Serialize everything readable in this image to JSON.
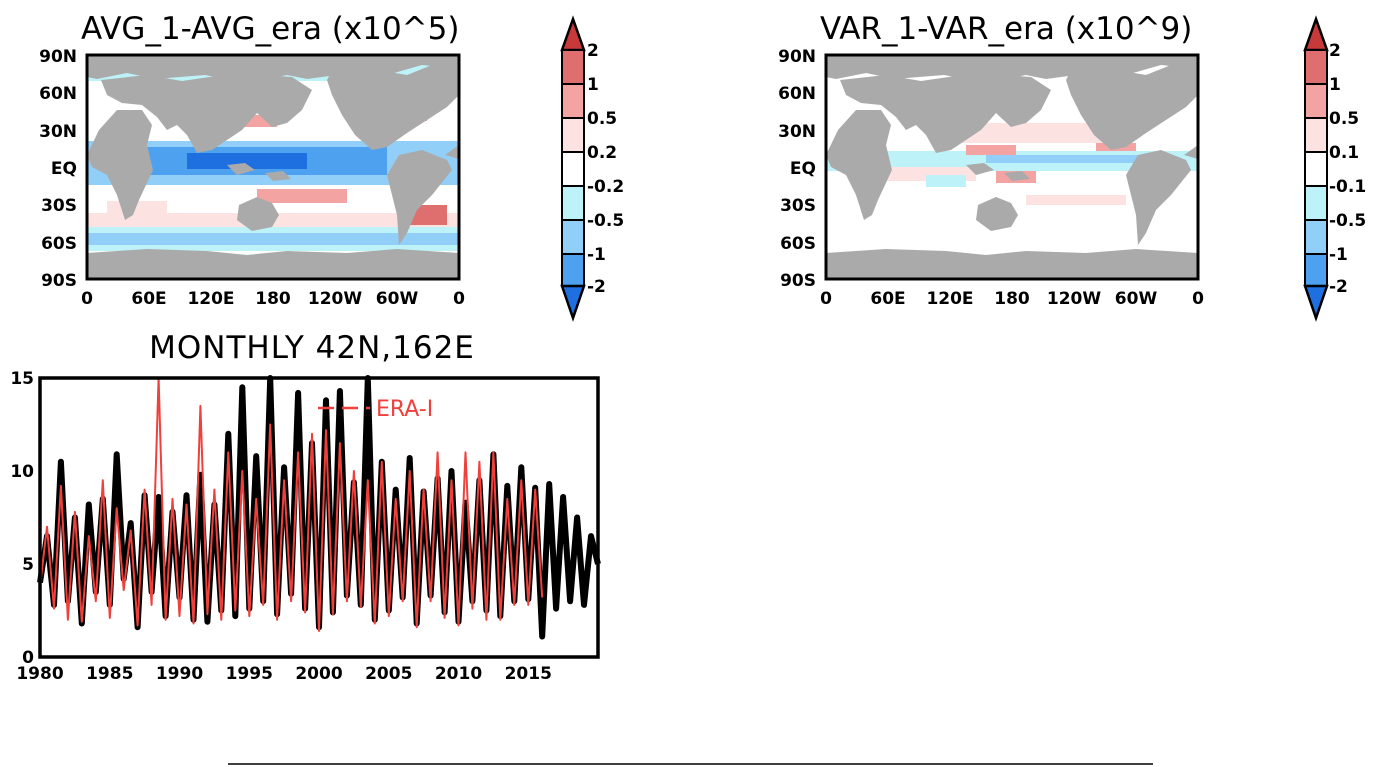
{
  "chart_data": [
    {
      "type": "heatmap",
      "title": "AVG_1-AVG_era (x10^5)",
      "lat_ticks": [
        "90N",
        "60N",
        "30N",
        "EQ",
        "30S",
        "60S",
        "90S"
      ],
      "lon_ticks": [
        "0",
        "60E",
        "120E",
        "180",
        "120W",
        "60W",
        "0"
      ],
      "colorbar": {
        "labels": [
          "2",
          "1",
          "0.5",
          "0.2",
          "-0.2",
          "-0.5",
          "-1",
          "-2"
        ],
        "levels": [
          2,
          1,
          0.5,
          0.2,
          -0.2,
          -0.5,
          -1,
          -2
        ],
        "colors": [
          "#c83a3a",
          "#df6f6f",
          "#f4a3a3",
          "#fde2e2",
          "#ffffff",
          "#bdf3f8",
          "#92cff8",
          "#4ea1ef",
          "#1e6fe0"
        ]
      },
      "land_color": "#aaaaaa"
    },
    {
      "type": "heatmap",
      "title": "VAR_1-VAR_era (x10^9)",
      "lat_ticks": [
        "90N",
        "60N",
        "30N",
        "EQ",
        "30S",
        "60S",
        "90S"
      ],
      "lon_ticks": [
        "0",
        "60E",
        "120E",
        "180",
        "120W",
        "60W",
        "0"
      ],
      "colorbar": {
        "labels": [
          "2",
          "1",
          "0.5",
          "0.1",
          "-0.1",
          "-0.5",
          "-1",
          "-2"
        ],
        "levels": [
          2,
          1,
          0.5,
          0.1,
          -0.1,
          -0.5,
          -1,
          -2
        ],
        "colors": [
          "#c83a3a",
          "#df6f6f",
          "#f4a3a3",
          "#fde2e2",
          "#ffffff",
          "#bdf3f8",
          "#92cff8",
          "#4ea1ef",
          "#1e6fe0"
        ]
      },
      "land_color": "#aaaaaa"
    },
    {
      "type": "line",
      "title": "MONTHLY 42N,162E",
      "xlim": [
        1980,
        2020
      ],
      "ylim": [
        0,
        15
      ],
      "xticks": [
        1980,
        1985,
        1990,
        1995,
        2000,
        2005,
        2010,
        2015
      ],
      "yticks": [
        0,
        5,
        10,
        15
      ],
      "series": [
        {
          "color": "#000000",
          "x": [
            1980.0,
            1980.5,
            1981.0,
            1981.5,
            1982.0,
            1982.5,
            1983.0,
            1983.5,
            1984.0,
            1984.5,
            1985.0,
            1985.5,
            1986.0,
            1986.5,
            1987.0,
            1987.5,
            1988.0,
            1988.5,
            1989.0,
            1989.5,
            1990.0,
            1990.5,
            1991.0,
            1991.5,
            1992.0,
            1992.5,
            1993.0,
            1993.5,
            1994.0,
            1994.5,
            1995.0,
            1995.5,
            1996.0,
            1996.5,
            1997.0,
            1997.5,
            1998.0,
            1998.5,
            1999.0,
            1999.5,
            2000.0,
            2000.5,
            2001.0,
            2001.5,
            2002.0,
            2002.5,
            2003.0,
            2003.5,
            2004.0,
            2004.5,
            2005.0,
            2005.5,
            2006.0,
            2006.5,
            2007.0,
            2007.5,
            2008.0,
            2008.5,
            2009.0,
            2009.5,
            2010.0,
            2010.5,
            2011.0,
            2011.5,
            2012.0,
            2012.5,
            2013.0,
            2013.5,
            2014.0,
            2014.5,
            2015.0,
            2015.5,
            2016.0,
            2016.5,
            2017.0,
            2017.5,
            2018.0,
            2018.5,
            2019.0,
            2019.5,
            2020.0
          ],
          "y": [
            4.0,
            6.5,
            2.8,
            10.5,
            3.0,
            7.5,
            1.8,
            8.2,
            3.5,
            8.5,
            2.8,
            10.9,
            4.2,
            7.2,
            1.6,
            8.7,
            3.5,
            8.6,
            2.2,
            7.8,
            3.2,
            8.7,
            2.0,
            9.8,
            1.9,
            8.2,
            2.5,
            12.0,
            2.2,
            14.5,
            2.6,
            10.8,
            3.0,
            15.0,
            2.3,
            10.2,
            3.4,
            14.2,
            2.6,
            11.5,
            1.6,
            13.8,
            2.4,
            14.3,
            3.3,
            9.4,
            2.8,
            15.0,
            2.0,
            10.5,
            2.5,
            9.0,
            3.2,
            10.7,
            1.8,
            8.9,
            3.3,
            9.6,
            2.4,
            10.0,
            1.9,
            8.3,
            3.0,
            9.5,
            2.5,
            10.9,
            2.2,
            9.2,
            3.0,
            10.2,
            3.1,
            9.1,
            1.1,
            9.3,
            2.6,
            8.6,
            3.0,
            7.5,
            2.8,
            6.5,
            5.0
          ]
        },
        {
          "name": "ERA-I",
          "color": "#f0403c",
          "x": [
            1980.0,
            1980.5,
            1981.0,
            1981.5,
            1982.0,
            1982.5,
            1983.0,
            1983.5,
            1984.0,
            1984.5,
            1985.0,
            1985.5,
            1986.0,
            1986.5,
            1987.0,
            1987.5,
            1988.0,
            1988.5,
            1989.0,
            1989.5,
            1990.0,
            1990.5,
            1991.0,
            1991.5,
            1992.0,
            1992.5,
            1993.0,
            1993.5,
            1994.0,
            1994.5,
            1995.0,
            1995.5,
            1996.0,
            1996.5,
            1997.0,
            1997.5,
            1998.0,
            1998.5,
            1999.0,
            1999.5,
            2000.0,
            2000.5,
            2001.0,
            2001.5,
            2002.0,
            2002.5,
            2003.0,
            2003.5,
            2004.0,
            2004.5,
            2005.0,
            2005.5,
            2006.0,
            2006.5,
            2007.0,
            2007.5,
            2008.0,
            2008.5,
            2009.0,
            2009.5,
            2010.0,
            2010.5,
            2011.0,
            2011.5,
            2012.0,
            2012.5,
            2013.0,
            2013.5,
            2014.0,
            2014.5,
            2015.0,
            2015.5,
            2016.0
          ],
          "y": [
            3.8,
            7.0,
            2.6,
            9.2,
            2.0,
            7.8,
            1.9,
            6.5,
            3.0,
            9.5,
            2.1,
            8.0,
            3.6,
            6.8,
            1.7,
            9.0,
            2.8,
            15.0,
            2.0,
            8.5,
            2.2,
            8.2,
            1.8,
            13.5,
            2.3,
            9.0,
            2.0,
            11.0,
            2.5,
            10.0,
            2.2,
            8.5,
            2.8,
            12.5,
            2.0,
            9.5,
            3.0,
            11.0,
            2.4,
            12.0,
            1.4,
            12.2,
            2.3,
            11.5,
            3.0,
            10.0,
            2.7,
            9.5,
            1.8,
            10.5,
            2.2,
            8.5,
            3.0,
            10.0,
            1.6,
            9.0,
            3.0,
            11.0,
            2.1,
            9.5,
            1.7,
            11.0,
            2.6,
            10.5,
            2.0,
            11.0,
            2.0,
            8.5,
            2.8,
            9.5,
            2.8,
            9.0,
            3.2
          ]
        }
      ]
    }
  ]
}
